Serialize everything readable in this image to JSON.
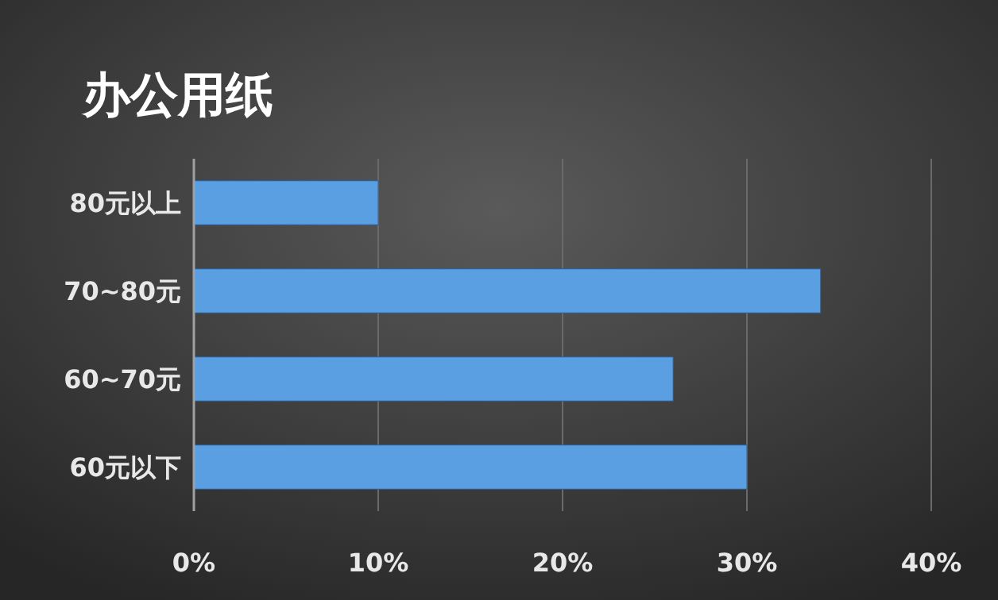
{
  "chart_data": {
    "type": "bar",
    "orientation": "horizontal",
    "title": "办公用纸",
    "categories": [
      "80元以上",
      "70~80元",
      "60~70元",
      "60元以下"
    ],
    "values": [
      10,
      34,
      26,
      30
    ],
    "color": "#5b9fe3",
    "xlim": [
      0,
      40
    ],
    "xticks": [
      {
        "value": 0,
        "label": "0%"
      },
      {
        "value": 10,
        "label": "10%"
      },
      {
        "value": 20,
        "label": "20%"
      },
      {
        "value": 30,
        "label": "30%"
      },
      {
        "value": 40,
        "label": "40%"
      }
    ],
    "grid": "x"
  }
}
